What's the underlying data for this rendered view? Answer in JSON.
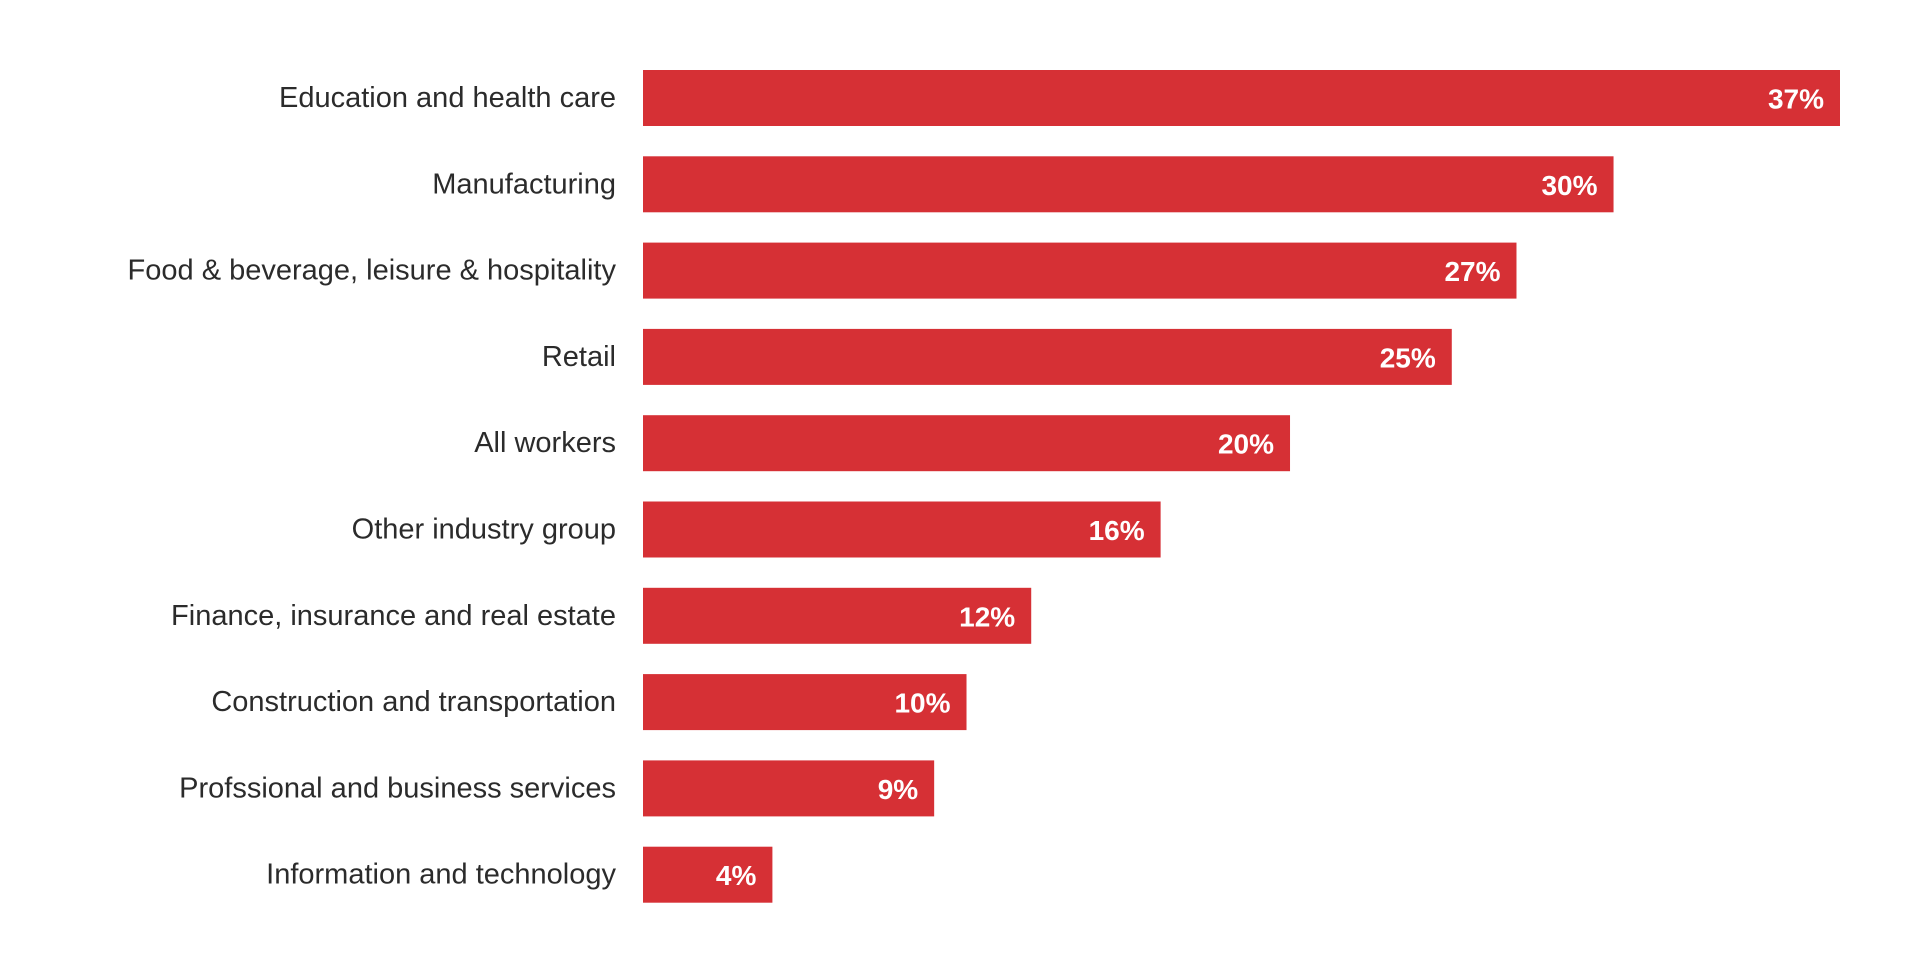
{
  "chart_data": {
    "type": "bar",
    "orientation": "horizontal",
    "categories": [
      "Education and health care",
      "Manufacturing",
      "Food & beverage, leisure & hospitality",
      "Retail",
      "All workers",
      "Other industry group",
      "Finance, insurance and real estate",
      "Construction and transportation",
      "Profssional and business services",
      "Information and technology"
    ],
    "values": [
      37,
      30,
      27,
      25,
      20,
      16,
      12,
      10,
      9,
      4
    ],
    "value_labels": [
      "37%",
      "30%",
      "27%",
      "25%",
      "20%",
      "16%",
      "12%",
      "10%",
      "9%",
      "4%"
    ],
    "unit": "%",
    "bar_color": "#d63035",
    "value_label_color": "#ffffff",
    "category_label_color": "#2b2b2b",
    "grid": false,
    "legend": "none",
    "xlim": [
      0,
      37
    ]
  }
}
